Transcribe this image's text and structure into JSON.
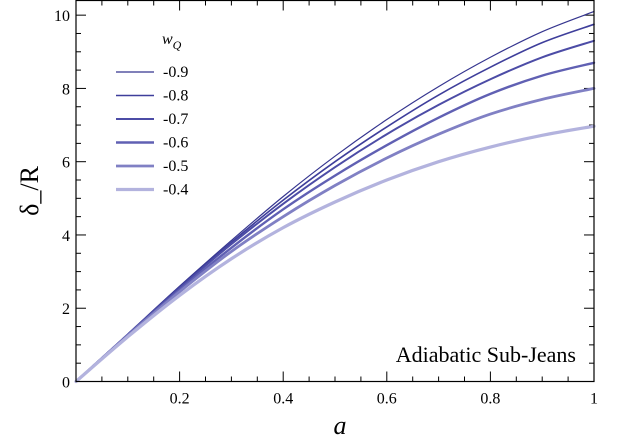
{
  "chart_data": {
    "type": "line",
    "xlabel": "a",
    "ylabel": "δ_/R",
    "xlim": [
      0,
      1
    ],
    "ylim": [
      0,
      10.4
    ],
    "x_ticks": [
      0.2,
      0.4,
      0.6,
      0.8,
      1
    ],
    "x_tick_labels": [
      "0.2",
      "0.4",
      "0.6",
      "0.8",
      "1"
    ],
    "y_ticks": [
      0,
      2,
      4,
      6,
      8,
      10
    ],
    "y_tick_labels": [
      "0",
      "2",
      "4",
      "6",
      "8",
      "10"
    ],
    "legend": {
      "title": "w",
      "title_subscript": "Q",
      "placement": "top-left"
    },
    "annotation": "Adiabatic Sub-Jeans",
    "x": [
      0,
      0.1,
      0.2,
      0.3,
      0.4,
      0.5,
      0.6,
      0.7,
      0.8,
      0.9,
      1.0
    ],
    "series": [
      {
        "name": "-0.9",
        "color": "#35358f",
        "values": [
          0,
          1.3,
          2.6,
          3.85,
          5.05,
          6.15,
          7.15,
          8.05,
          8.85,
          9.55,
          10.1
        ]
      },
      {
        "name": "-0.8",
        "color": "#3e3e9b",
        "values": [
          0,
          1.29,
          2.57,
          3.8,
          4.95,
          6.0,
          6.95,
          7.82,
          8.58,
          9.25,
          9.75
        ]
      },
      {
        "name": "-0.7",
        "color": "#4c4ca6",
        "values": [
          0,
          1.28,
          2.55,
          3.75,
          4.85,
          5.85,
          6.75,
          7.55,
          8.25,
          8.85,
          9.3
        ]
      },
      {
        "name": "-0.6",
        "color": "#6060b3",
        "values": [
          0,
          1.27,
          2.5,
          3.65,
          4.7,
          5.62,
          6.45,
          7.2,
          7.85,
          8.35,
          8.7
        ]
      },
      {
        "name": "-0.5",
        "color": "#8080c4",
        "values": [
          0,
          1.25,
          2.45,
          3.55,
          4.5,
          5.35,
          6.1,
          6.75,
          7.3,
          7.7,
          8.0
        ]
      },
      {
        "name": "-0.4",
        "color": "#b3b3de",
        "values": [
          0,
          1.22,
          2.35,
          3.35,
          4.2,
          4.9,
          5.5,
          6.0,
          6.4,
          6.72,
          6.97
        ]
      }
    ]
  }
}
